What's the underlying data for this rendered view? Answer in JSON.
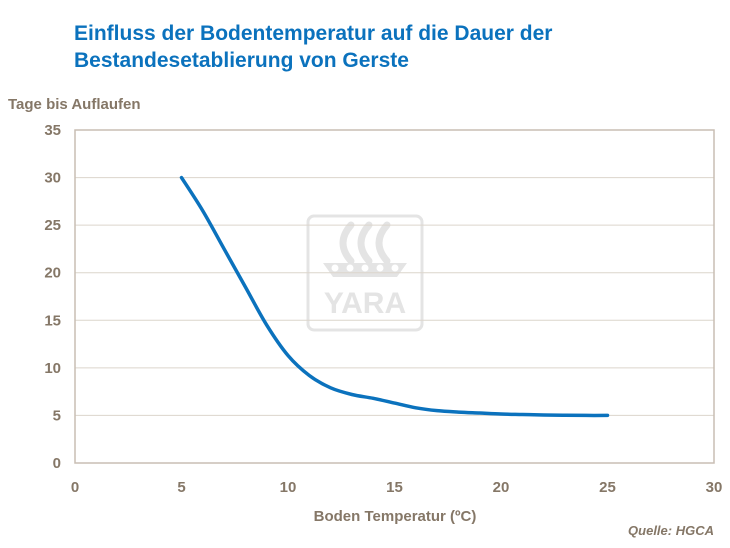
{
  "chart_data": {
    "type": "line",
    "title_lines": [
      "Einfluss der Bodentemperatur auf die Dauer der",
      "Bestandesetablierung von Gerste"
    ],
    "xlabel": "Boden Temperatur (ºC)",
    "ylabel": "Tage bis Auflaufen",
    "xlim": [
      0,
      30
    ],
    "ylim": [
      0,
      35
    ],
    "xticks": [
      0,
      5,
      10,
      15,
      20,
      25,
      30
    ],
    "yticks": [
      0,
      5,
      10,
      15,
      20,
      25,
      30,
      35
    ],
    "grid": "horizontal",
    "series": [
      {
        "color": "#0b72bd",
        "x": [
          5,
          6,
          7,
          8,
          9,
          10,
          11,
          12,
          13,
          14,
          15,
          16,
          17,
          18,
          19,
          20,
          21,
          22,
          23,
          24,
          25
        ],
        "y": [
          30,
          26.5,
          22.5,
          18.5,
          14.5,
          11.3,
          9.2,
          7.9,
          7.2,
          6.8,
          6.3,
          5.8,
          5.5,
          5.35,
          5.25,
          5.15,
          5.1,
          5.05,
          5.02,
          5.0,
          5.0
        ]
      }
    ],
    "source": "Quelle:  HGCA",
    "watermark": "YARA"
  },
  "colors": {
    "title": "#0b72bd",
    "axis_text": "#857767",
    "frame": "#c8beb4",
    "grid": "#dcd5cc",
    "watermark": "#e4e4e4"
  }
}
